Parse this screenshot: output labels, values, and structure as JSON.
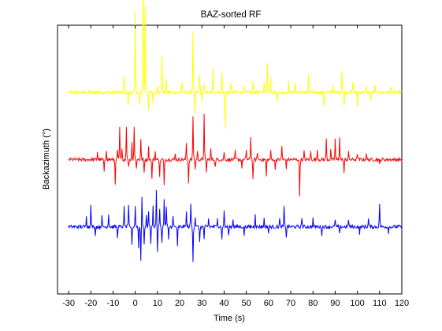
{
  "chart_data": {
    "type": "line",
    "title": "BAZ-sorted RF",
    "xlabel": "Time (s)",
    "ylabel": "Backazimuth (°)",
    "xlim": [
      -35,
      120
    ],
    "ylim": [
      0,
      4
    ],
    "xticks": [
      -30,
      -20,
      -10,
      0,
      10,
      20,
      30,
      40,
      50,
      60,
      70,
      80,
      90,
      100,
      110,
      120
    ],
    "xtick_labels": [
      "-30",
      "-20",
      "-10",
      "0",
      "10",
      "20",
      "30",
      "40",
      "50",
      "60",
      "70",
      "80",
      "90",
      "100",
      "110",
      "120"
    ],
    "grid": false,
    "series": [
      {
        "color": "#ffff00",
        "baseline": 3.0,
        "x_range": [
          -30,
          120
        ],
        "spikes": [
          [
            -5,
            0.25
          ],
          [
            -3.2,
            -0.22
          ],
          [
            0,
            1.2
          ],
          [
            2,
            -0.18
          ],
          [
            3.5,
            1.9
          ],
          [
            4.5,
            1.3
          ],
          [
            6,
            -0.25
          ],
          [
            8,
            -0.15
          ],
          [
            10,
            0.12
          ],
          [
            12,
            0.55
          ],
          [
            14,
            0.22
          ],
          [
            21,
            0.15
          ],
          [
            26,
            0.9
          ],
          [
            26.8,
            -0.35
          ],
          [
            29,
            0.25
          ],
          [
            30,
            -0.12
          ],
          [
            31,
            0.12
          ],
          [
            35,
            0.35
          ],
          [
            39,
            0.3
          ],
          [
            40.5,
            -0.55
          ],
          [
            43,
            0.12
          ],
          [
            49,
            0.12
          ],
          [
            53,
            0.15
          ],
          [
            58,
            0.18
          ],
          [
            59.5,
            0.45
          ],
          [
            61,
            0.25
          ],
          [
            64,
            -0.15
          ],
          [
            69,
            0.15
          ],
          [
            72,
            0.15
          ],
          [
            78,
            0.25
          ],
          [
            85,
            -0.2
          ],
          [
            89,
            0.12
          ],
          [
            93,
            0.32
          ],
          [
            94,
            -0.2
          ],
          [
            98,
            0.18
          ],
          [
            100,
            -0.22
          ],
          [
            104,
            0.12
          ],
          [
            106,
            -0.15
          ],
          [
            108,
            0.1
          ],
          [
            115,
            0.08
          ]
        ]
      },
      {
        "color": "#ff0000",
        "baseline": 2.0,
        "x_range": [
          -30,
          120
        ],
        "spikes": [
          [
            -17,
            0.12
          ],
          [
            -14,
            -0.2
          ],
          [
            -13,
            0.15
          ],
          [
            -9,
            -0.35
          ],
          [
            -8,
            0.15
          ],
          [
            -7,
            0.48
          ],
          [
            -6,
            0.15
          ],
          [
            -4,
            0.5
          ],
          [
            -3,
            -0.12
          ],
          [
            -1.5,
            0.25
          ],
          [
            -0.5,
            0.5
          ],
          [
            0.5,
            -0.12
          ],
          [
            2.5,
            0.3
          ],
          [
            4,
            -0.2
          ],
          [
            6,
            0.18
          ],
          [
            7.5,
            -0.3
          ],
          [
            9,
            0.12
          ],
          [
            11,
            -0.25
          ],
          [
            13,
            -0.4
          ],
          [
            18,
            0.1
          ],
          [
            23,
            0.25
          ],
          [
            24,
            -0.35
          ],
          [
            26,
            0.65
          ],
          [
            27,
            -0.15
          ],
          [
            28,
            0.12
          ],
          [
            31,
            0.7
          ],
          [
            32,
            -0.2
          ],
          [
            34,
            0.15
          ],
          [
            36,
            -0.12
          ],
          [
            40,
            0.12
          ],
          [
            45,
            0.12
          ],
          [
            48,
            -0.12
          ],
          [
            50,
            0.15
          ],
          [
            52,
            0.35
          ],
          [
            53,
            -0.3
          ],
          [
            55,
            0.12
          ],
          [
            59,
            -0.25
          ],
          [
            61,
            0.12
          ],
          [
            63,
            -0.15
          ],
          [
            66,
            0.2
          ],
          [
            68,
            -0.12
          ],
          [
            74,
            -0.55
          ],
          [
            76,
            0.12
          ],
          [
            79,
            0.12
          ],
          [
            82,
            0.15
          ],
          [
            86,
            0.3
          ],
          [
            88,
            0.15
          ],
          [
            90,
            0.3
          ],
          [
            92,
            0.35
          ],
          [
            94,
            -0.2
          ],
          [
            96,
            0.12
          ],
          [
            100,
            0.1
          ],
          [
            104,
            0.1
          ],
          [
            110,
            -0.08
          ]
        ]
      },
      {
        "color": "#0000ff",
        "baseline": 1.0,
        "x_range": [
          -30,
          120
        ],
        "spikes": [
          [
            -22,
            0.18
          ],
          [
            -20,
            0.35
          ],
          [
            -18,
            -0.12
          ],
          [
            -15,
            0.15
          ],
          [
            -12,
            0.2
          ],
          [
            -8,
            -0.15
          ],
          [
            -5,
            0.3
          ],
          [
            -3,
            0.3
          ],
          [
            -1.5,
            -0.25
          ],
          [
            0,
            0.3
          ],
          [
            1.5,
            -0.3
          ],
          [
            2.5,
            -0.5
          ],
          [
            3,
            0.45
          ],
          [
            4,
            -0.25
          ],
          [
            5,
            0.15
          ],
          [
            6,
            0.25
          ],
          [
            7,
            -0.25
          ],
          [
            8,
            0.3
          ],
          [
            9.5,
            0.55
          ],
          [
            10,
            -0.4
          ],
          [
            11,
            0.25
          ],
          [
            12,
            -0.25
          ],
          [
            13,
            0.4
          ],
          [
            14,
            0.3
          ],
          [
            15,
            -0.2
          ],
          [
            17,
            0.15
          ],
          [
            19,
            -0.3
          ],
          [
            23,
            0.22
          ],
          [
            25,
            0.35
          ],
          [
            26,
            -0.5
          ],
          [
            27,
            0.15
          ],
          [
            29,
            -0.25
          ],
          [
            31,
            -0.2
          ],
          [
            33,
            0.12
          ],
          [
            37,
            0.15
          ],
          [
            39,
            -0.2
          ],
          [
            40,
            0.25
          ],
          [
            42,
            -0.15
          ],
          [
            44,
            0.12
          ],
          [
            49,
            -0.12
          ],
          [
            54,
            0.2
          ],
          [
            58,
            0.12
          ],
          [
            60,
            -0.1
          ],
          [
            65,
            0.12
          ],
          [
            67,
            0.3
          ],
          [
            68,
            -0.15
          ],
          [
            75,
            0.15
          ],
          [
            80,
            0.12
          ],
          [
            84,
            -0.12
          ],
          [
            90,
            0.12
          ],
          [
            92,
            -0.12
          ],
          [
            96,
            0.12
          ],
          [
            101,
            -0.1
          ],
          [
            105,
            0.12
          ],
          [
            110,
            0.35
          ],
          [
            114,
            -0.08
          ]
        ]
      }
    ]
  }
}
